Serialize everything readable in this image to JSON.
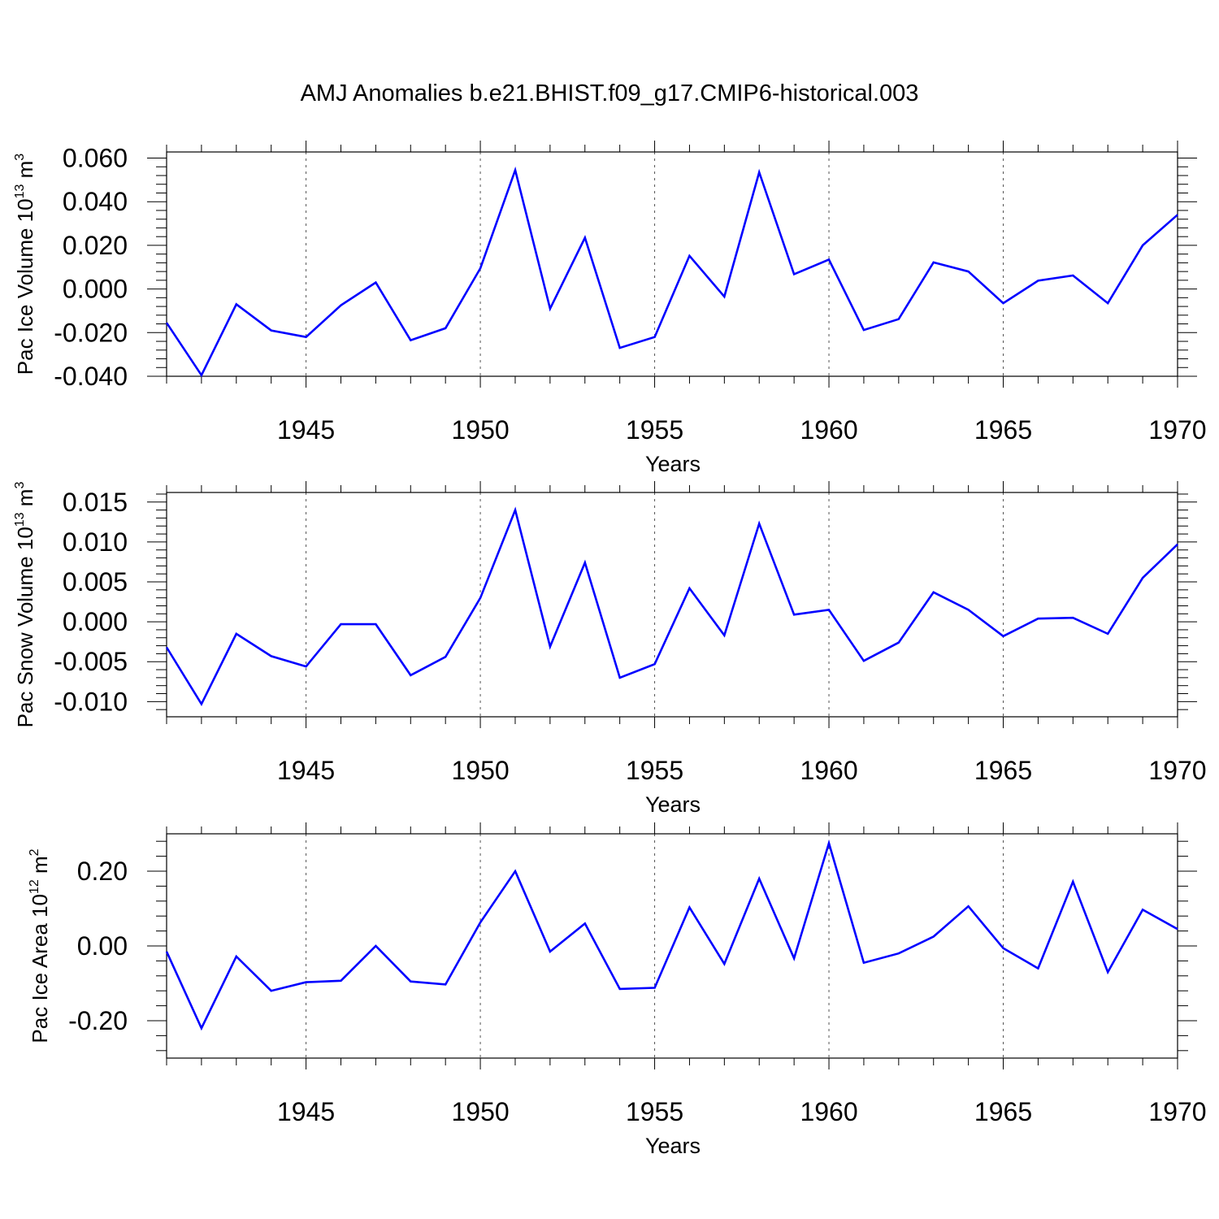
{
  "title": "AMJ Anomalies b.e21.BHIST.f09_g17.CMIP6-historical.003",
  "colors": {
    "line": "#0000ff",
    "axis": "#000000",
    "grid": "#555555"
  },
  "chart_data": [
    {
      "type": "line",
      "ylabel": {
        "text": "Pac Ice Volume 10",
        "exp": "13",
        "unit": " m",
        "unit_exp": "3"
      },
      "xlabel": "Years",
      "xlim": [
        1941,
        1970
      ],
      "ylim": [
        -0.04,
        0.0628
      ],
      "yticks": [
        -0.04,
        -0.02,
        0.0,
        0.02,
        0.04,
        0.06
      ],
      "ytick_labels": [
        "-0.040",
        "-0.020",
        "0.000",
        "0.020",
        "0.040",
        "0.060"
      ],
      "xticks": [
        1945,
        1950,
        1955,
        1960,
        1965,
        1970
      ],
      "xtick_labels": [
        "1945",
        "1950",
        "1955",
        "1960",
        "1965",
        "1970"
      ],
      "grid": "vertical dotted at major x ticks",
      "series": [
        {
          "name": "Pac Ice Volume",
          "x": [
            1941,
            1942,
            1943,
            1944,
            1945,
            1946,
            1947,
            1948,
            1949,
            1950,
            1951,
            1952,
            1953,
            1954,
            1955,
            1956,
            1957,
            1958,
            1959,
            1960,
            1961,
            1962,
            1963,
            1964,
            1965,
            1966,
            1967,
            1968,
            1969,
            1970
          ],
          "y": [
            -0.0155,
            -0.0395,
            -0.007,
            -0.019,
            -0.022,
            -0.0075,
            0.003,
            -0.0235,
            -0.018,
            0.0095,
            0.0545,
            -0.009,
            0.0235,
            -0.027,
            -0.022,
            0.0152,
            -0.0035,
            0.0535,
            0.0068,
            0.0135,
            -0.0188,
            -0.0138,
            0.0122,
            0.008,
            -0.0065,
            0.0038,
            0.0062,
            -0.0065,
            0.02,
            0.034
          ]
        }
      ]
    },
    {
      "type": "line",
      "ylabel": {
        "text": "Pac Snow Volume 10",
        "exp": "13",
        "unit": " m",
        "unit_exp": "3"
      },
      "xlabel": "Years",
      "xlim": [
        1941,
        1970
      ],
      "ylim": [
        -0.0119,
        0.0162
      ],
      "yticks": [
        -0.01,
        -0.005,
        0.0,
        0.005,
        0.01,
        0.015
      ],
      "ytick_labels": [
        "-0.010",
        "-0.005",
        "0.000",
        "0.005",
        "0.010",
        "0.015"
      ],
      "xticks": [
        1945,
        1950,
        1955,
        1960,
        1965,
        1970
      ],
      "xtick_labels": [
        "1945",
        "1950",
        "1955",
        "1960",
        "1965",
        "1970"
      ],
      "grid": "vertical dotted at major x ticks",
      "series": [
        {
          "name": "Pac Snow Volume",
          "x": [
            1941,
            1942,
            1943,
            1944,
            1945,
            1946,
            1947,
            1948,
            1949,
            1950,
            1951,
            1952,
            1953,
            1954,
            1955,
            1956,
            1957,
            1958,
            1959,
            1960,
            1961,
            1962,
            1963,
            1964,
            1965,
            1966,
            1967,
            1968,
            1969,
            1970
          ],
          "y": [
            -0.0032,
            -0.0103,
            -0.0015,
            -0.0043,
            -0.0056,
            -0.0003,
            -0.0003,
            -0.0067,
            -0.0044,
            0.003,
            0.014,
            -0.0031,
            0.0074,
            -0.007,
            -0.0053,
            0.0042,
            -0.0017,
            0.0123,
            0.0009,
            0.0015,
            -0.0049,
            -0.0026,
            0.0037,
            0.0015,
            -0.0018,
            0.0004,
            0.0005,
            -0.0015,
            0.0055,
            0.0097
          ]
        }
      ]
    },
    {
      "type": "line",
      "ylabel": {
        "text": "Pac Ice Area 10",
        "exp": "12",
        "unit": " m",
        "unit_exp": "2"
      },
      "xlabel": "Years",
      "xlim": [
        1941,
        1970
      ],
      "ylim": [
        -0.3,
        0.3
      ],
      "yticks": [
        -0.2,
        0.0,
        0.2
      ],
      "ytick_labels": [
        "-0.20",
        "0.00",
        "0.20"
      ],
      "xticks": [
        1945,
        1950,
        1955,
        1960,
        1965,
        1970
      ],
      "xtick_labels": [
        "1945",
        "1950",
        "1955",
        "1960",
        "1965",
        "1970"
      ],
      "grid": "vertical dotted at major x ticks",
      "series": [
        {
          "name": "Pac Ice Area",
          "x": [
            1941,
            1942,
            1943,
            1944,
            1945,
            1946,
            1947,
            1948,
            1949,
            1950,
            1951,
            1952,
            1953,
            1954,
            1955,
            1956,
            1957,
            1958,
            1959,
            1960,
            1961,
            1962,
            1963,
            1964,
            1965,
            1966,
            1967,
            1968,
            1969,
            1970
          ],
          "y": [
            -0.015,
            -0.22,
            -0.028,
            -0.12,
            -0.097,
            -0.093,
            0.0,
            -0.095,
            -0.103,
            0.063,
            0.2,
            -0.015,
            0.06,
            -0.115,
            -0.112,
            0.103,
            -0.048,
            0.18,
            -0.033,
            0.275,
            -0.045,
            -0.02,
            0.025,
            0.106,
            -0.006,
            -0.06,
            0.172,
            -0.07,
            0.097,
            0.045
          ]
        }
      ]
    }
  ]
}
